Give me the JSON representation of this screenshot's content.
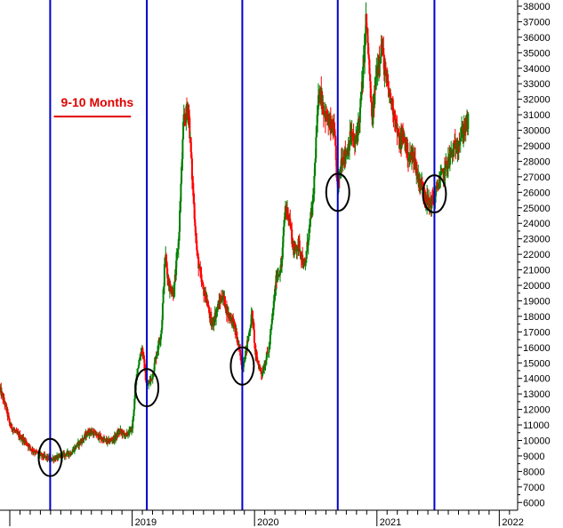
{
  "chart_data": {
    "type": "candlestick",
    "yaxis": {
      "position": "right",
      "ticks": [
        6000,
        7000,
        8000,
        9000,
        10000,
        11000,
        12000,
        13000,
        14000,
        15000,
        16000,
        17000,
        18000,
        19000,
        20000,
        21000,
        22000,
        23000,
        24000,
        25000,
        26000,
        27000,
        28000,
        29000,
        30000,
        31000,
        32000,
        33000,
        34000,
        35000,
        36000,
        37000,
        38000
      ],
      "tick_labels": [
        "6000",
        "7000",
        "8000",
        "9000",
        "10000",
        "11000",
        "12000",
        "13000",
        "14000",
        "15000",
        "16000",
        "17000",
        "18000",
        "19000",
        "20000",
        "21000",
        "22000",
        "23000",
        "24000",
        "25000",
        "26000",
        "27000",
        "28000",
        "29000",
        "30000",
        "31000",
        "32000",
        "33000",
        "34000",
        "35000",
        "36000",
        "37000",
        "38000"
      ],
      "range": [
        5500,
        38400
      ]
    },
    "xaxis": {
      "range": [
        2017.92,
        2022.15
      ],
      "year_ticks": [
        2019,
        2020,
        2021,
        2022
      ],
      "year_labels": [
        "2019",
        "2020",
        "2021",
        "2022"
      ]
    },
    "grid": false,
    "colors": {
      "up": "#008000",
      "down": "#ff0000",
      "cycle_line": "#0000cc",
      "circle": "#000000",
      "annotation": "#e00000"
    },
    "cycle_lines": [
      2018.33,
      2019.12,
      2019.9,
      2020.68,
      2021.47
    ],
    "circles": [
      {
        "x": 2018.33,
        "y": 8900
      },
      {
        "x": 2019.12,
        "y": 13400
      },
      {
        "x": 2019.9,
        "y": 14800
      },
      {
        "x": 2020.68,
        "y": 26000
      },
      {
        "x": 2021.47,
        "y": 25900
      }
    ],
    "annotation": {
      "text": "9-10 Months",
      "x_start": 2018.36,
      "x_end": 2018.99,
      "y": 31800
    },
    "price_path": [
      [
        2017.92,
        13300
      ],
      [
        2017.97,
        12100
      ],
      [
        2018.0,
        11000
      ],
      [
        2018.06,
        10400
      ],
      [
        2018.12,
        10000
      ],
      [
        2018.18,
        9400
      ],
      [
        2018.26,
        9000
      ],
      [
        2018.33,
        8800
      ],
      [
        2018.4,
        8900
      ],
      [
        2018.45,
        9100
      ],
      [
        2018.5,
        9200
      ],
      [
        2018.55,
        9700
      ],
      [
        2018.6,
        10100
      ],
      [
        2018.65,
        10600
      ],
      [
        2018.7,
        10400
      ],
      [
        2018.75,
        10100
      ],
      [
        2018.8,
        9900
      ],
      [
        2018.85,
        10100
      ],
      [
        2018.9,
        10600
      ],
      [
        2018.95,
        10300
      ],
      [
        2019.0,
        10800
      ],
      [
        2019.04,
        14500
      ],
      [
        2019.08,
        16000
      ],
      [
        2019.12,
        13500
      ],
      [
        2019.16,
        14000
      ],
      [
        2019.2,
        15600
      ],
      [
        2019.24,
        17200
      ],
      [
        2019.27,
        22000
      ],
      [
        2019.3,
        20000
      ],
      [
        2019.34,
        19500
      ],
      [
        2019.38,
        23000
      ],
      [
        2019.42,
        30500
      ],
      [
        2019.46,
        31500
      ],
      [
        2019.49,
        27000
      ],
      [
        2019.53,
        22000
      ],
      [
        2019.57,
        20000
      ],
      [
        2019.61,
        19000
      ],
      [
        2019.65,
        17400
      ],
      [
        2019.7,
        18600
      ],
      [
        2019.74,
        19400
      ],
      [
        2019.78,
        18200
      ],
      [
        2019.82,
        17800
      ],
      [
        2019.86,
        16500
      ],
      [
        2019.9,
        14700
      ],
      [
        2019.94,
        16200
      ],
      [
        2019.98,
        18200
      ],
      [
        2020.01,
        15400
      ],
      [
        2020.06,
        14300
      ],
      [
        2020.12,
        16000
      ],
      [
        2020.18,
        20600
      ],
      [
        2020.22,
        21200
      ],
      [
        2020.25,
        25000
      ],
      [
        2020.28,
        24600
      ],
      [
        2020.32,
        22200
      ],
      [
        2020.36,
        22700
      ],
      [
        2020.41,
        21000
      ],
      [
        2020.44,
        23200
      ],
      [
        2020.48,
        25500
      ],
      [
        2020.5,
        29000
      ],
      [
        2020.53,
        32800
      ],
      [
        2020.57,
        31200
      ],
      [
        2020.61,
        30300
      ],
      [
        2020.65,
        30000
      ],
      [
        2020.68,
        26000
      ],
      [
        2020.71,
        28200
      ],
      [
        2020.75,
        28500
      ],
      [
        2020.79,
        29800
      ],
      [
        2020.82,
        29000
      ],
      [
        2020.86,
        31000
      ],
      [
        2020.89,
        34000
      ],
      [
        2020.91,
        37200
      ],
      [
        2020.93,
        35000
      ],
      [
        2020.96,
        30500
      ],
      [
        2021.0,
        34000
      ],
      [
        2021.04,
        35500
      ],
      [
        2021.07,
        33400
      ],
      [
        2021.11,
        32000
      ],
      [
        2021.14,
        31200
      ],
      [
        2021.18,
        29200
      ],
      [
        2021.22,
        29600
      ],
      [
        2021.26,
        28200
      ],
      [
        2021.3,
        28400
      ],
      [
        2021.34,
        26800
      ],
      [
        2021.38,
        26200
      ],
      [
        2021.42,
        25200
      ],
      [
        2021.47,
        25600
      ],
      [
        2021.51,
        26800
      ],
      [
        2021.55,
        27300
      ],
      [
        2021.59,
        28200
      ],
      [
        2021.63,
        28800
      ],
      [
        2021.67,
        29300
      ],
      [
        2021.71,
        30100
      ],
      [
        2021.75,
        30600
      ]
    ]
  }
}
